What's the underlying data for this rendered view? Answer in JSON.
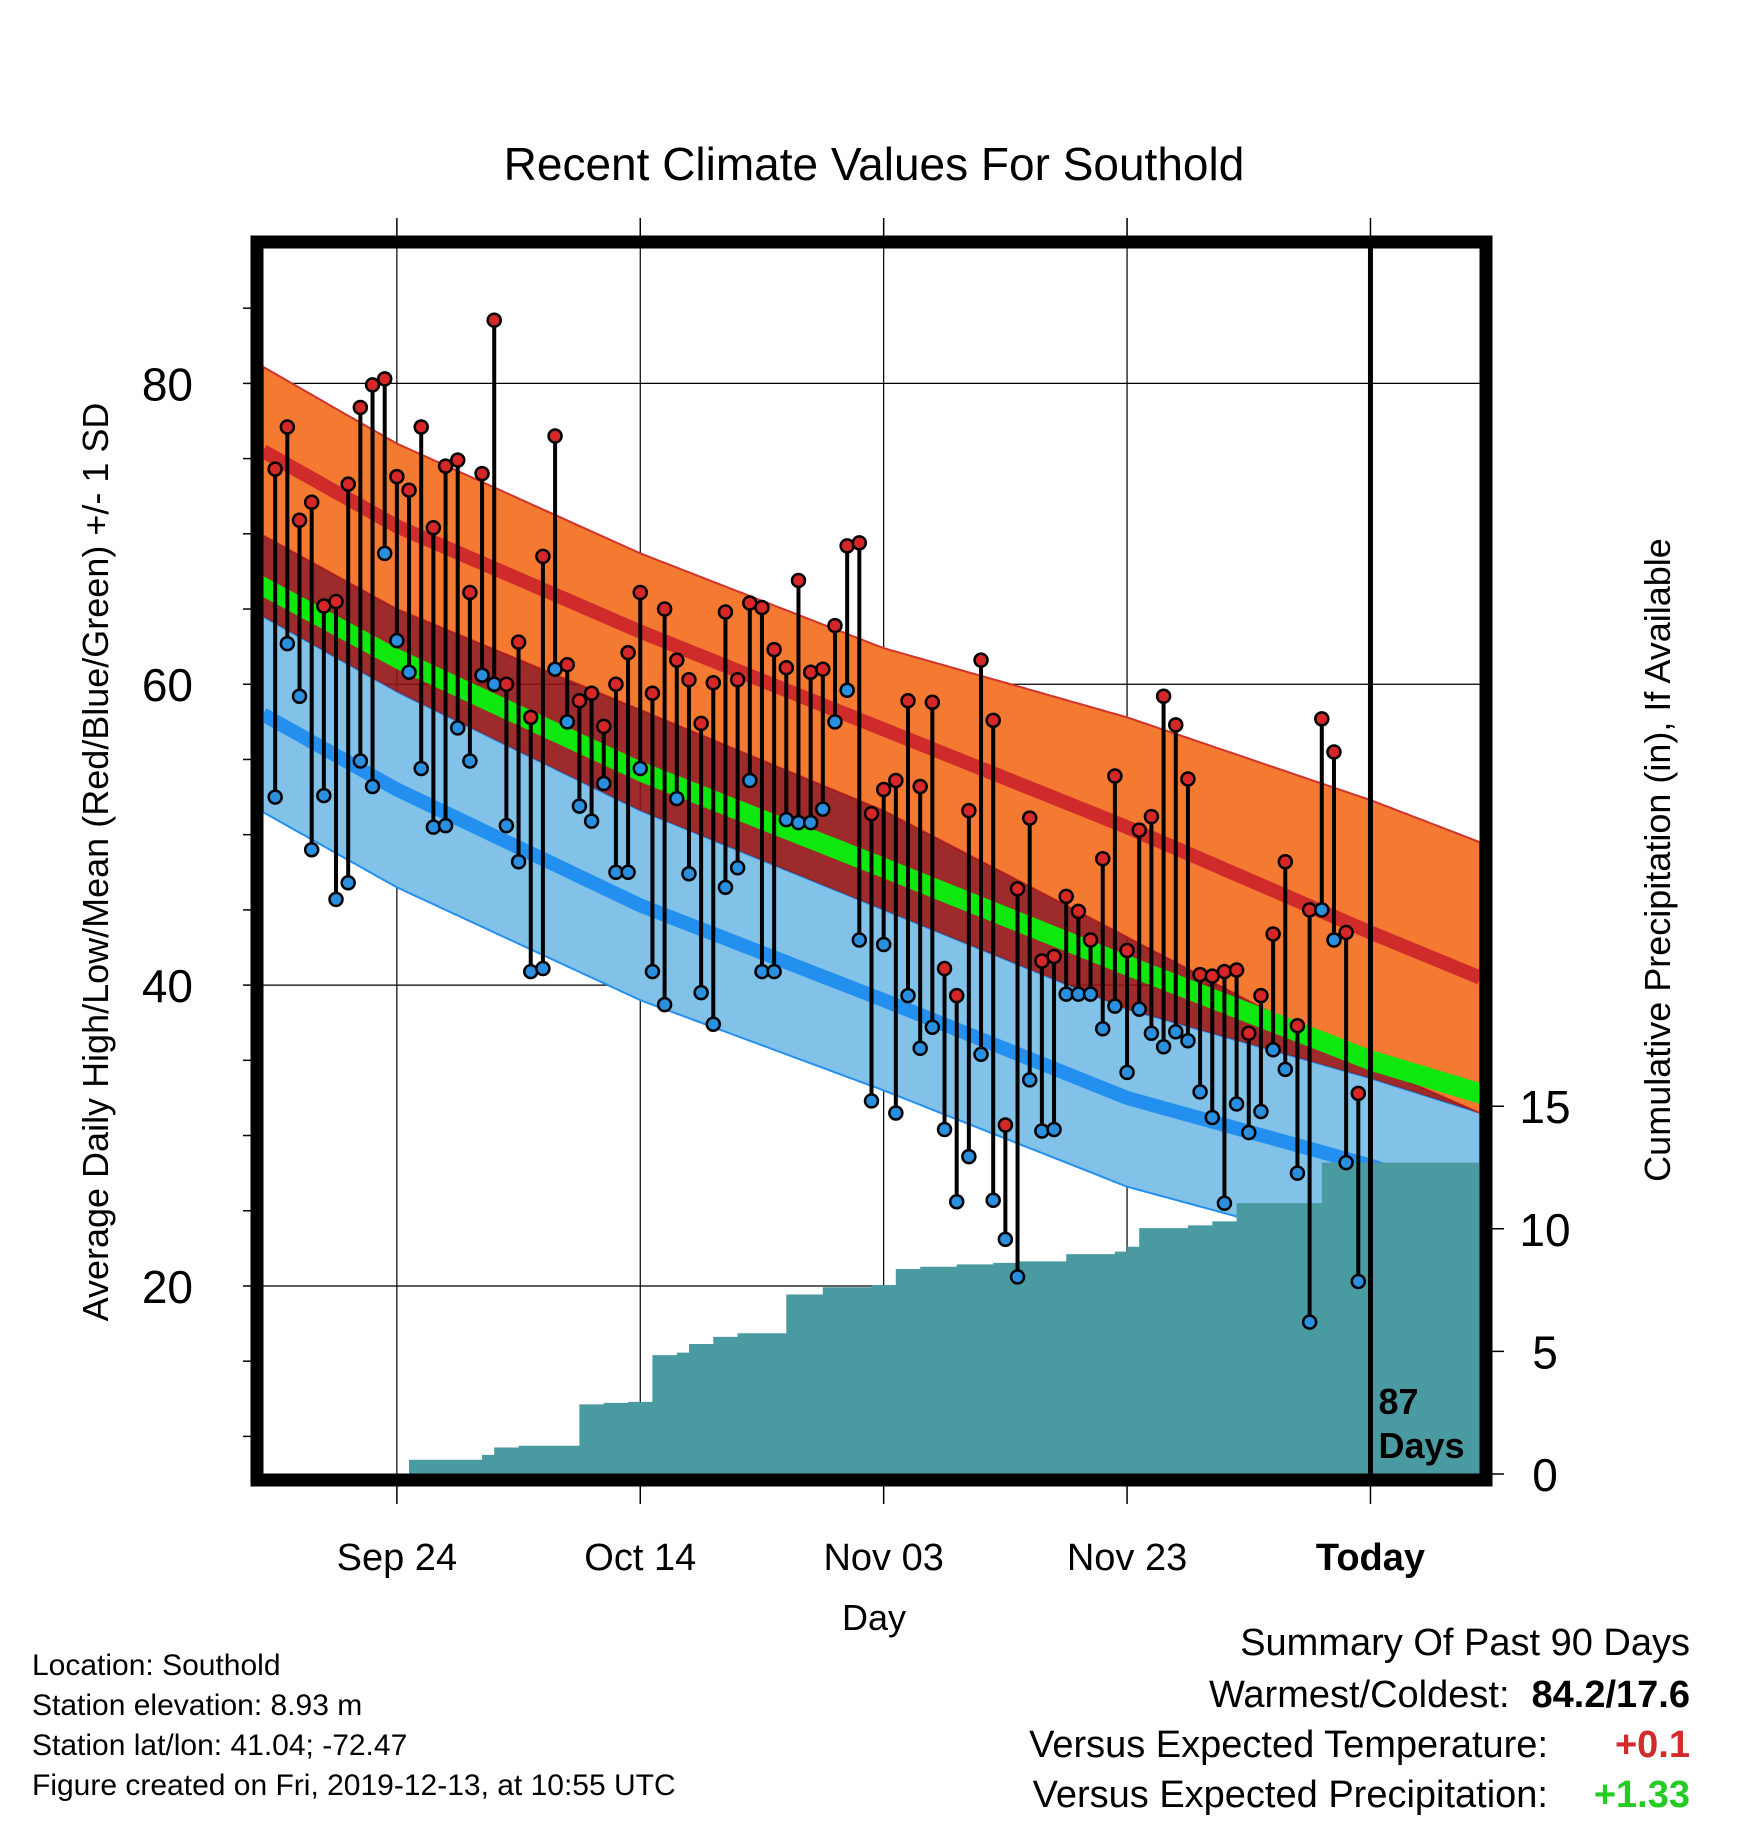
{
  "chart_data": {
    "type": "line",
    "title": "Recent Climate Values For Southold",
    "xlabel": "Day",
    "ylabel": "Average Daily High/Low/Mean (Red/Blue/Green) +/- 1 SD",
    "y2label": "Cumulative Precipitation (in), If Available",
    "ylim": [
      7.5,
      89.0
    ],
    "y2lim": [
      0,
      50
    ],
    "yticks": [
      20,
      40,
      60,
      80
    ],
    "y2ticks": [
      0,
      5,
      10,
      15
    ],
    "xticks": [
      {
        "day": 10,
        "label": "Sep 24"
      },
      {
        "day": 30,
        "label": "Oct 14"
      },
      {
        "day": 50,
        "label": "Nov 03"
      },
      {
        "day": 70,
        "label": "Nov 23"
      },
      {
        "day": 90,
        "label": "Today"
      }
    ],
    "xlim": [
      -1,
      99
    ],
    "today_marker": {
      "day": 90,
      "label_line1": "87",
      "label_line2": "Days"
    },
    "normal_bands": {
      "days": [
        -1,
        10,
        30,
        50,
        70,
        90,
        99
      ],
      "high_mean": [
        75.5,
        70.5,
        63.5,
        57.0,
        50.5,
        43.5,
        40.5
      ],
      "high_sd": [
        5.6,
        5.5,
        5.2,
        5.4,
        7.3,
        8.8,
        9.0
      ],
      "mean_mean": [
        66.5,
        61.7,
        54.2,
        47.8,
        41.3,
        35.0,
        32.8
      ],
      "mean_sd": [
        0.7,
        0.7,
        0.7,
        0.7,
        0.7,
        0.7,
        0.7
      ],
      "low_mean": [
        58.0,
        53.0,
        45.3,
        39.0,
        32.5,
        28.0,
        25.7
      ],
      "low_sd": [
        6.5,
        6.5,
        6.3,
        6.0,
        5.9,
        5.8,
        5.8
      ]
    },
    "series": [
      {
        "name": "High",
        "color": "#d62728",
        "values": [
          74.3,
          77.1,
          70.9,
          72.1,
          65.2,
          65.5,
          73.3,
          78.4,
          79.9,
          80.3,
          73.8,
          72.9,
          77.1,
          70.4,
          74.5,
          74.9,
          66.1,
          74.0,
          84.2,
          60.0,
          62.8,
          57.8,
          68.5,
          76.5,
          61.3,
          58.9,
          59.4,
          57.2,
          60.0,
          62.1,
          66.1,
          59.4,
          65.0,
          61.6,
          60.3,
          57.4,
          60.1,
          64.8,
          60.3,
          65.4,
          65.1,
          62.3,
          61.1,
          66.9,
          60.8,
          61.0,
          63.9,
          69.2,
          69.4,
          51.4,
          53.0,
          53.6,
          58.9,
          53.2,
          58.8,
          41.1,
          39.3,
          51.6,
          61.6,
          57.6,
          30.7,
          46.4,
          51.1,
          41.6,
          41.9,
          45.9,
          44.9,
          43.0,
          48.4,
          53.9,
          42.3,
          50.3,
          51.2,
          59.2,
          57.3,
          53.7,
          40.7,
          40.6,
          40.9,
          41.0,
          36.8,
          39.3,
          43.4,
          48.2,
          37.3,
          45.0,
          57.7,
          55.5,
          43.5,
          32.8
        ]
      },
      {
        "name": "Low",
        "color": "#2b8fe0",
        "values": [
          52.5,
          62.7,
          59.2,
          49.0,
          52.6,
          45.7,
          46.8,
          54.9,
          53.2,
          68.7,
          62.9,
          60.8,
          54.4,
          50.5,
          50.6,
          57.1,
          54.9,
          60.6,
          60.0,
          50.6,
          48.2,
          40.9,
          41.1,
          61.0,
          57.5,
          51.9,
          50.9,
          53.4,
          47.5,
          47.5,
          54.4,
          40.9,
          38.7,
          52.4,
          47.4,
          39.5,
          37.4,
          46.5,
          47.8,
          53.6,
          40.9,
          40.9,
          51.0,
          50.8,
          50.8,
          51.7,
          57.5,
          59.6,
          43.0,
          32.3,
          42.7,
          31.5,
          39.3,
          35.8,
          37.2,
          30.4,
          25.6,
          28.6,
          35.4,
          25.7,
          23.1,
          20.6,
          33.7,
          30.3,
          30.4,
          39.4,
          39.4,
          39.4,
          37.1,
          38.6,
          34.2,
          38.4,
          36.8,
          35.9,
          36.9,
          36.3,
          32.9,
          31.2,
          25.5,
          32.1,
          30.2,
          31.6,
          35.7,
          34.4,
          27.5,
          17.6,
          45.0,
          43.0,
          28.2,
          20.3
        ]
      },
      {
        "name": "Cumulative Precipitation",
        "color": "#4a9aa1",
        "values": [
          0.0,
          0.0,
          0.0,
          0.0,
          0.0,
          0.0,
          0.0,
          0.0,
          0.0,
          0.0,
          0.0,
          0.58,
          0.58,
          0.58,
          0.58,
          0.58,
          0.58,
          0.78,
          1.08,
          1.08,
          1.15,
          1.15,
          1.15,
          1.15,
          1.15,
          2.84,
          2.84,
          2.9,
          2.9,
          2.94,
          2.94,
          4.85,
          4.85,
          4.95,
          5.3,
          5.3,
          5.59,
          5.59,
          5.74,
          5.74,
          5.74,
          5.74,
          7.32,
          7.32,
          7.32,
          7.62,
          7.62,
          7.62,
          7.62,
          7.71,
          7.71,
          8.36,
          8.36,
          8.45,
          8.45,
          8.45,
          8.55,
          8.55,
          8.55,
          8.61,
          8.61,
          8.67,
          8.67,
          8.67,
          8.67,
          8.97,
          8.97,
          8.97,
          8.97,
          9.07,
          9.27,
          10.03,
          10.03,
          10.03,
          10.03,
          10.14,
          10.14,
          10.3,
          10.3,
          11.05,
          11.05,
          11.05,
          11.05,
          11.05,
          11.05,
          11.05,
          12.7,
          12.7,
          12.7,
          12.7
        ]
      }
    ],
    "legend": "none",
    "grid": true
  },
  "footer": {
    "location": "Location: Southold",
    "elevation": "Station elevation: 8.93 m",
    "latlon": "Station lat/lon: 41.04; -72.47",
    "created": "Figure created on Fri, 2019-12-13, at 10:55 UTC"
  },
  "summary": {
    "title": "Summary Of Past 90 Days",
    "warmest_coldest_label": "Warmest/Coldest:",
    "warmest_coldest_value": "84.2/17.6",
    "temp_label": "Versus Expected Temperature:",
    "temp_value": "+0.1",
    "temp_color": "#d42a2a",
    "precip_label": "Versus Expected Precipitation:",
    "precip_value": "+1.33",
    "precip_color": "#22cc22"
  },
  "colors": {
    "high_band": "#f47a32",
    "high_band_edge": "#d0342a",
    "high_mean_line": "#cf2b2b",
    "mean_band": "#0ee80e",
    "mean_overlap": "#941414",
    "low_band": "#83c2e8",
    "low_mean_line": "#2390ef",
    "precip_fill": "#4a9aa1"
  }
}
